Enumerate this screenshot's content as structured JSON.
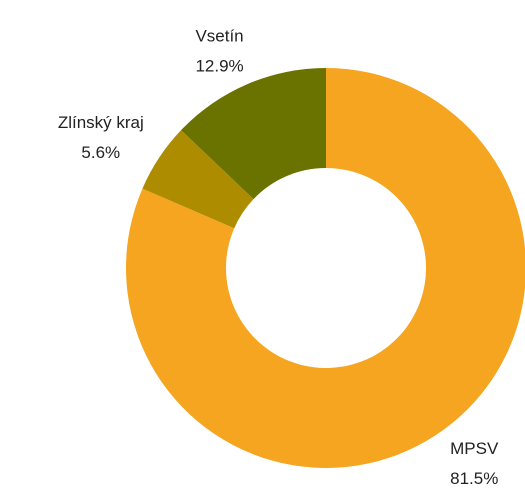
{
  "chart_data": {
    "type": "donut",
    "categories": [
      "MPSV",
      "Zlínský kraj",
      "Vsetín"
    ],
    "values": [
      81.5,
      5.6,
      12.9
    ],
    "value_labels": [
      "81.5%",
      "5.6%",
      "12.9%"
    ],
    "colors": [
      "#f5a51f",
      "#ad8c00",
      "#6b7300"
    ]
  }
}
